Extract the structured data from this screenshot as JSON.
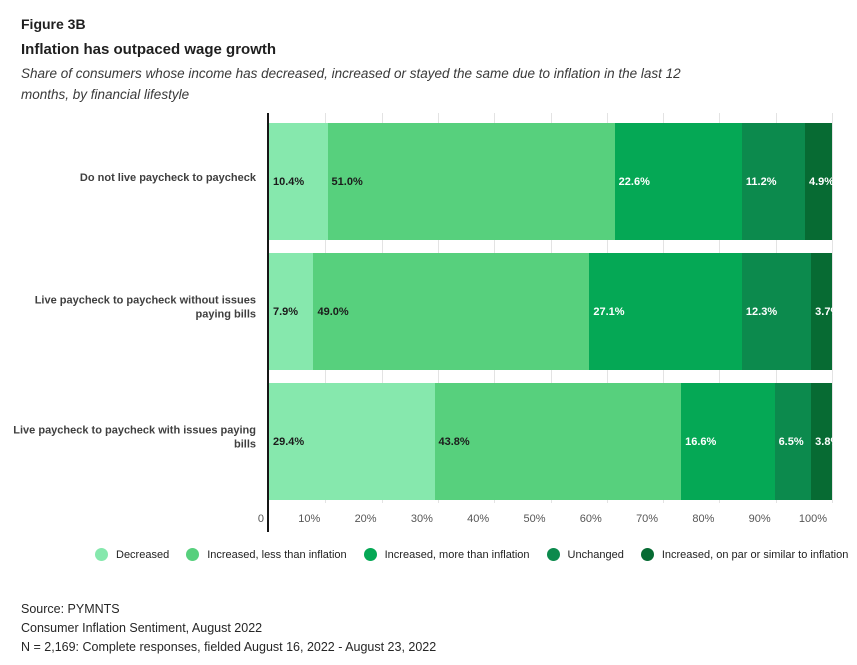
{
  "header": {
    "figure_label": "Figure 3B",
    "title": "Inflation has outpaced wage growth",
    "subtitle": "Share of consumers whose income has decreased, increased or stayed the same due to inflation in the last 12 months, by financial lifestyle"
  },
  "chart_data": {
    "type": "bar",
    "orientation": "horizontal",
    "stacked": true,
    "unit": "%",
    "grid": true,
    "legend_position": "bottom",
    "categories": [
      "Do not live paycheck to paycheck",
      "Live paycheck to paycheck without issues paying bills",
      "Live paycheck to paycheck with issues paying bills"
    ],
    "series": [
      {
        "name": "Decreased",
        "color": "#86E8AD",
        "label_style": "dark",
        "values": [
          10.4,
          7.9,
          29.4
        ]
      },
      {
        "name": "Increased, less than inflation",
        "color": "#57D07D",
        "label_style": "dark",
        "values": [
          51.0,
          49.0,
          43.8
        ]
      },
      {
        "name": "Increased, more than inflation",
        "color": "#05A855",
        "label_style": "light",
        "values": [
          22.6,
          27.1,
          16.6
        ]
      },
      {
        "name": "Unchanged",
        "color": "#0C8A4D",
        "label_style": "light",
        "values": [
          11.2,
          12.3,
          6.5
        ]
      },
      {
        "name": "Increased, on par or similar to inflation",
        "color": "#076B33",
        "label_style": "light",
        "values": [
          4.9,
          3.7,
          3.8
        ]
      }
    ],
    "x_axis": {
      "min": 0,
      "max": 100,
      "tick_labels": [
        "0",
        "10%",
        "20%",
        "30%",
        "40%",
        "50%",
        "60%",
        "70%",
        "80%",
        "90%",
        "100%"
      ],
      "tick_values": [
        0,
        10,
        20,
        30,
        40,
        50,
        60,
        70,
        80,
        90,
        100
      ]
    }
  },
  "footer": {
    "lines": [
      "Source: PYMNTS",
      "Consumer Inflation Sentiment, August 2022",
      "N = 2,169: Complete responses, fielded August 16, 2022 - August 23, 2022"
    ]
  }
}
